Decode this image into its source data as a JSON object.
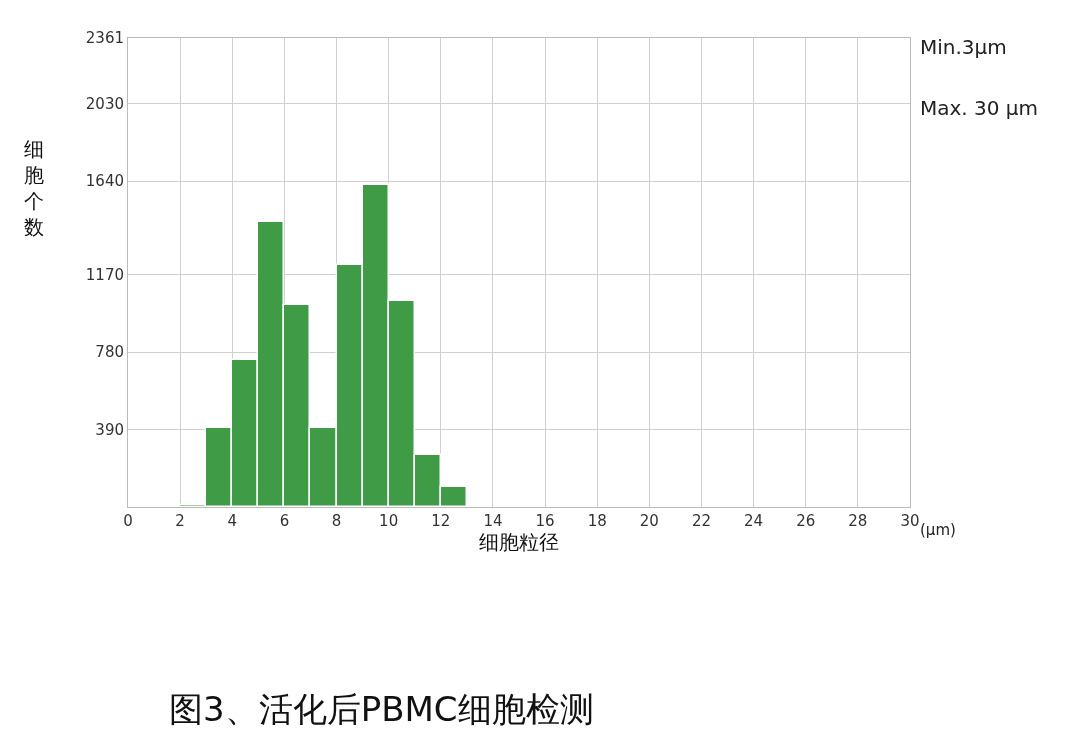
{
  "chart_data": {
    "type": "histogram",
    "title": "图3、活化后PBMC细胞检测",
    "xlabel": "细胞粒径",
    "ylabel": "细胞个数",
    "bins": [
      2,
      3,
      4,
      5,
      6,
      7,
      8,
      9,
      10,
      11,
      12,
      13
    ],
    "values": [
      10,
      400,
      740,
      1435,
      1015,
      400,
      1218,
      1622,
      1035,
      260,
      100
    ],
    "color": "#3f9b45",
    "xlim": [
      0,
      30
    ],
    "xticks": [
      0,
      2,
      4,
      6,
      8,
      10,
      12,
      14,
      16,
      18,
      20,
      22,
      24,
      26,
      28,
      30
    ],
    "ylim": [
      0,
      2361
    ],
    "yticks": [
      390,
      780,
      1170,
      1640,
      2030,
      2361
    ],
    "grid": true,
    "annotations": [
      "(μm)",
      "Min.3μm",
      "Max. 30 μm"
    ]
  }
}
